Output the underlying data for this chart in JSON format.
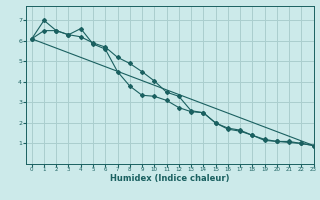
{
  "title": "",
  "xlabel": "Humidex (Indice chaleur)",
  "ylabel": "",
  "bg_color": "#cceaea",
  "grid_color": "#aacece",
  "line_color": "#1a6060",
  "xlim": [
    -0.5,
    23
  ],
  "ylim": [
    0,
    7.7
  ],
  "xticks": [
    0,
    1,
    2,
    3,
    4,
    5,
    6,
    7,
    8,
    9,
    10,
    11,
    12,
    13,
    14,
    15,
    16,
    17,
    18,
    19,
    20,
    21,
    22,
    23
  ],
  "yticks": [
    1,
    2,
    3,
    4,
    5,
    6,
    7
  ],
  "line1_x": [
    0,
    1,
    2,
    3,
    4,
    5,
    6,
    7,
    8,
    9,
    10,
    11,
    12,
    13,
    14,
    15,
    16,
    17,
    18,
    19,
    20,
    21,
    22,
    23
  ],
  "line1_y": [
    6.1,
    7.0,
    6.5,
    6.3,
    6.6,
    5.85,
    5.6,
    4.5,
    3.8,
    3.35,
    3.3,
    3.1,
    2.75,
    2.55,
    2.5,
    2.0,
    1.75,
    1.65,
    1.4,
    1.15,
    1.1,
    1.05,
    1.0,
    0.9
  ],
  "line2_x": [
    0,
    1,
    2,
    3,
    4,
    5,
    6,
    7,
    8,
    9,
    10,
    11,
    12,
    13,
    14,
    15,
    16,
    17,
    18,
    19,
    20,
    21,
    22,
    23
  ],
  "line2_y": [
    6.1,
    6.5,
    6.5,
    6.3,
    6.2,
    5.9,
    5.7,
    5.2,
    4.9,
    4.5,
    4.05,
    3.5,
    3.3,
    2.6,
    2.5,
    2.0,
    1.7,
    1.6,
    1.4,
    1.2,
    1.1,
    1.1,
    1.0,
    0.9
  ],
  "line3_x": [
    0,
    23
  ],
  "line3_y": [
    6.1,
    0.9
  ]
}
